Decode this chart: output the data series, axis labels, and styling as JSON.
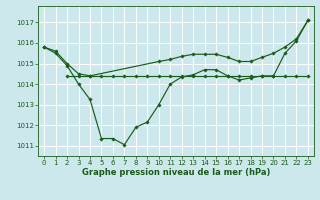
{
  "xlabel": "Graphe pression niveau de la mer (hPa)",
  "xlim": [
    -0.5,
    23.5
  ],
  "ylim": [
    1010.5,
    1017.8
  ],
  "yticks": [
    1011,
    1012,
    1013,
    1014,
    1015,
    1016,
    1017
  ],
  "xticks": [
    0,
    1,
    2,
    3,
    4,
    5,
    6,
    7,
    8,
    9,
    10,
    11,
    12,
    13,
    14,
    15,
    16,
    17,
    18,
    19,
    20,
    21,
    22,
    23
  ],
  "bg_color": "#cce8ec",
  "grid_color": "#ffffff",
  "line_color": "#1a5c1a",
  "line1_upper": {
    "x": [
      0,
      1,
      2,
      3,
      4,
      10,
      11,
      12,
      13,
      14,
      15,
      16,
      17,
      18,
      19,
      20,
      21,
      22,
      23
    ],
    "y": [
      1015.8,
      1015.6,
      1015.0,
      1014.5,
      1014.4,
      1015.1,
      1015.2,
      1015.35,
      1015.45,
      1015.45,
      1015.45,
      1015.3,
      1015.1,
      1015.1,
      1015.3,
      1015.5,
      1015.8,
      1016.2,
      1017.1
    ]
  },
  "line2_dip": {
    "x": [
      0,
      1,
      2,
      3,
      4,
      5,
      6,
      7,
      8,
      9,
      10,
      11,
      12,
      13,
      14,
      15,
      16,
      17,
      18,
      19,
      20,
      21,
      22,
      23
    ],
    "y": [
      1015.8,
      1015.5,
      1014.9,
      1014.0,
      1013.25,
      1011.35,
      1011.35,
      1011.05,
      1011.9,
      1012.15,
      1013.0,
      1014.0,
      1014.35,
      1014.45,
      1014.7,
      1014.7,
      1014.4,
      1014.2,
      1014.3,
      1014.4,
      1014.4,
      1015.5,
      1016.1,
      1017.1
    ]
  },
  "line3_flat": {
    "x": [
      2,
      3,
      4,
      5,
      6,
      7,
      8,
      9,
      10,
      11,
      12,
      13,
      14,
      15,
      16,
      17,
      18,
      19,
      20,
      21,
      22,
      23
    ],
    "y": [
      1014.4,
      1014.4,
      1014.4,
      1014.4,
      1014.4,
      1014.4,
      1014.4,
      1014.4,
      1014.4,
      1014.4,
      1014.4,
      1014.4,
      1014.4,
      1014.4,
      1014.4,
      1014.4,
      1014.4,
      1014.4,
      1014.4,
      1014.4,
      1014.4,
      1014.4
    ]
  },
  "tick_fontsize": 5.0,
  "label_fontsize": 6.0,
  "markersize": 1.8,
  "linewidth": 0.85
}
